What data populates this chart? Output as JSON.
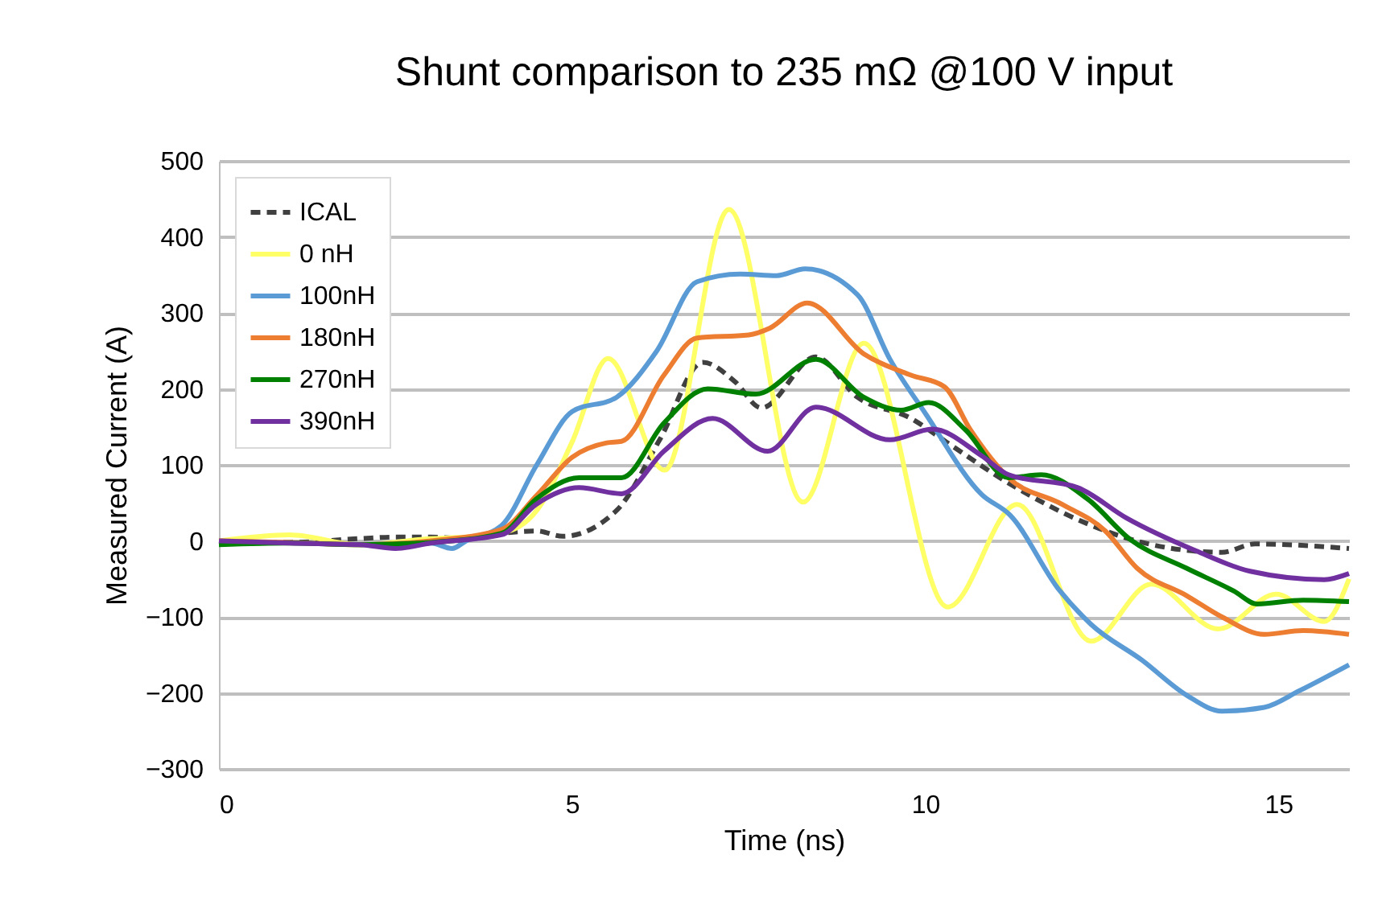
{
  "chart_data": {
    "type": "line",
    "title": "Shunt comparison to 235 mΩ @100 V input",
    "xlabel": "Time (ns)",
    "ylabel": "Measured Current (A)",
    "xlim": [
      0,
      16
    ],
    "xticks": [
      0,
      5,
      10,
      15
    ],
    "ylim": [
      -300,
      500
    ],
    "yticks": [
      -300,
      -200,
      -100,
      0,
      100,
      200,
      300,
      400,
      500
    ],
    "grid": "y",
    "legend": "top left",
    "series": [
      {
        "name": "ICAL",
        "color": "#404040",
        "line_style": "dashed",
        "x": [
          0,
          1,
          2,
          2.5,
          3,
          3.5,
          4,
          4.5,
          4.87,
          5.63,
          6.24,
          6.85,
          7.3,
          7.68,
          8.45,
          9.04,
          9.8,
          10.3,
          11.18,
          12.16,
          13.07,
          14.2,
          14.67,
          16
        ],
        "values": [
          0,
          -2,
          3,
          5,
          5,
          3,
          10,
          13,
          6,
          40,
          133,
          235,
          210,
          175,
          242,
          189,
          161,
          130,
          76,
          28,
          -2,
          -15,
          -4,
          -10
        ]
      },
      {
        "name": "0 nH",
        "color": "#ffff66",
        "line_style": "solid",
        "x": [
          0,
          1,
          2,
          3,
          3.5,
          4,
          4.5,
          5,
          5.51,
          6.31,
          7.22,
          8.27,
          9.13,
          10.32,
          11.3,
          12.35,
          13.2,
          14.15,
          14.97,
          15.65,
          16
        ],
        "values": [
          0,
          8,
          -5,
          3,
          5,
          10,
          40,
          130,
          240,
          93,
          436,
          51,
          260,
          -87,
          48,
          -132,
          -57,
          -116,
          -70,
          -106,
          -50
        ]
      },
      {
        "name": "100nH",
        "color": "#5b9bd5",
        "line_style": "solid",
        "x": [
          2,
          3,
          3.3,
          3.5,
          4,
          4.5,
          5,
          5.63,
          6.2,
          6.77,
          7.38,
          7.9,
          8.3,
          9.04,
          9.5,
          10,
          10.8,
          11.2,
          11.9,
          12.35,
          13.07,
          13.7,
          14.2,
          14.8,
          15.3,
          16
        ],
        "values": [
          -5,
          -3,
          -10,
          0,
          20,
          100,
          170,
          189,
          250,
          341,
          351,
          349,
          358,
          324,
          239,
          168,
          61,
          34,
          -65,
          -110,
          -157,
          -203,
          -224,
          -219,
          -197,
          -163
        ]
      },
      {
        "name": "180nH",
        "color": "#ed7d31",
        "line_style": "solid",
        "x": [
          0,
          1,
          2,
          3,
          4,
          4.5,
          5,
          5.49,
          5.7,
          6.3,
          6.77,
          7.5,
          7.8,
          8.33,
          9.13,
          9.8,
          10.27,
          10.64,
          11.18,
          11.94,
          12.55,
          13,
          13.7,
          14.2,
          14.8,
          15.35,
          16
        ],
        "values": [
          0,
          -2,
          -5,
          0,
          15,
          60,
          110,
          129,
          131,
          218,
          267,
          271,
          280,
          313,
          246,
          218,
          203,
          146,
          83,
          48,
          13,
          -36,
          -72,
          -100,
          -123,
          -118,
          -123
        ]
      },
      {
        "name": "270nH",
        "color": "#008000",
        "line_style": "solid",
        "x": [
          0,
          1,
          2,
          3,
          4,
          4.49,
          5.1,
          5.7,
          6.3,
          6.92,
          7.6,
          8.45,
          9.13,
          9.66,
          10.05,
          10.57,
          11.18,
          11.64,
          12.3,
          12.9,
          13.7,
          14.37,
          14.7,
          15.35,
          16
        ],
        "values": [
          -5,
          -3,
          -5,
          -2,
          10,
          55,
          83,
          83,
          155,
          200,
          193,
          239,
          189,
          172,
          182,
          146,
          83,
          87,
          55,
          2,
          -36,
          -66,
          -83,
          -78,
          -80
        ]
      },
      {
        "name": "390nH",
        "color": "#7030a0",
        "line_style": "solid",
        "x": [
          0,
          1,
          2,
          2.5,
          3,
          4,
          4.49,
          5.1,
          5.7,
          6.3,
          6.99,
          7.77,
          8.45,
          9.5,
          10.1,
          10.8,
          11.18,
          12.16,
          12.85,
          13.83,
          14.6,
          15.65,
          16
        ],
        "values": [
          0,
          -3,
          -5,
          -10,
          -3,
          8,
          48,
          70,
          62,
          118,
          161,
          118,
          176,
          133,
          147,
          112,
          87,
          70,
          30,
          -13,
          -40,
          -51,
          -43
        ]
      }
    ]
  }
}
